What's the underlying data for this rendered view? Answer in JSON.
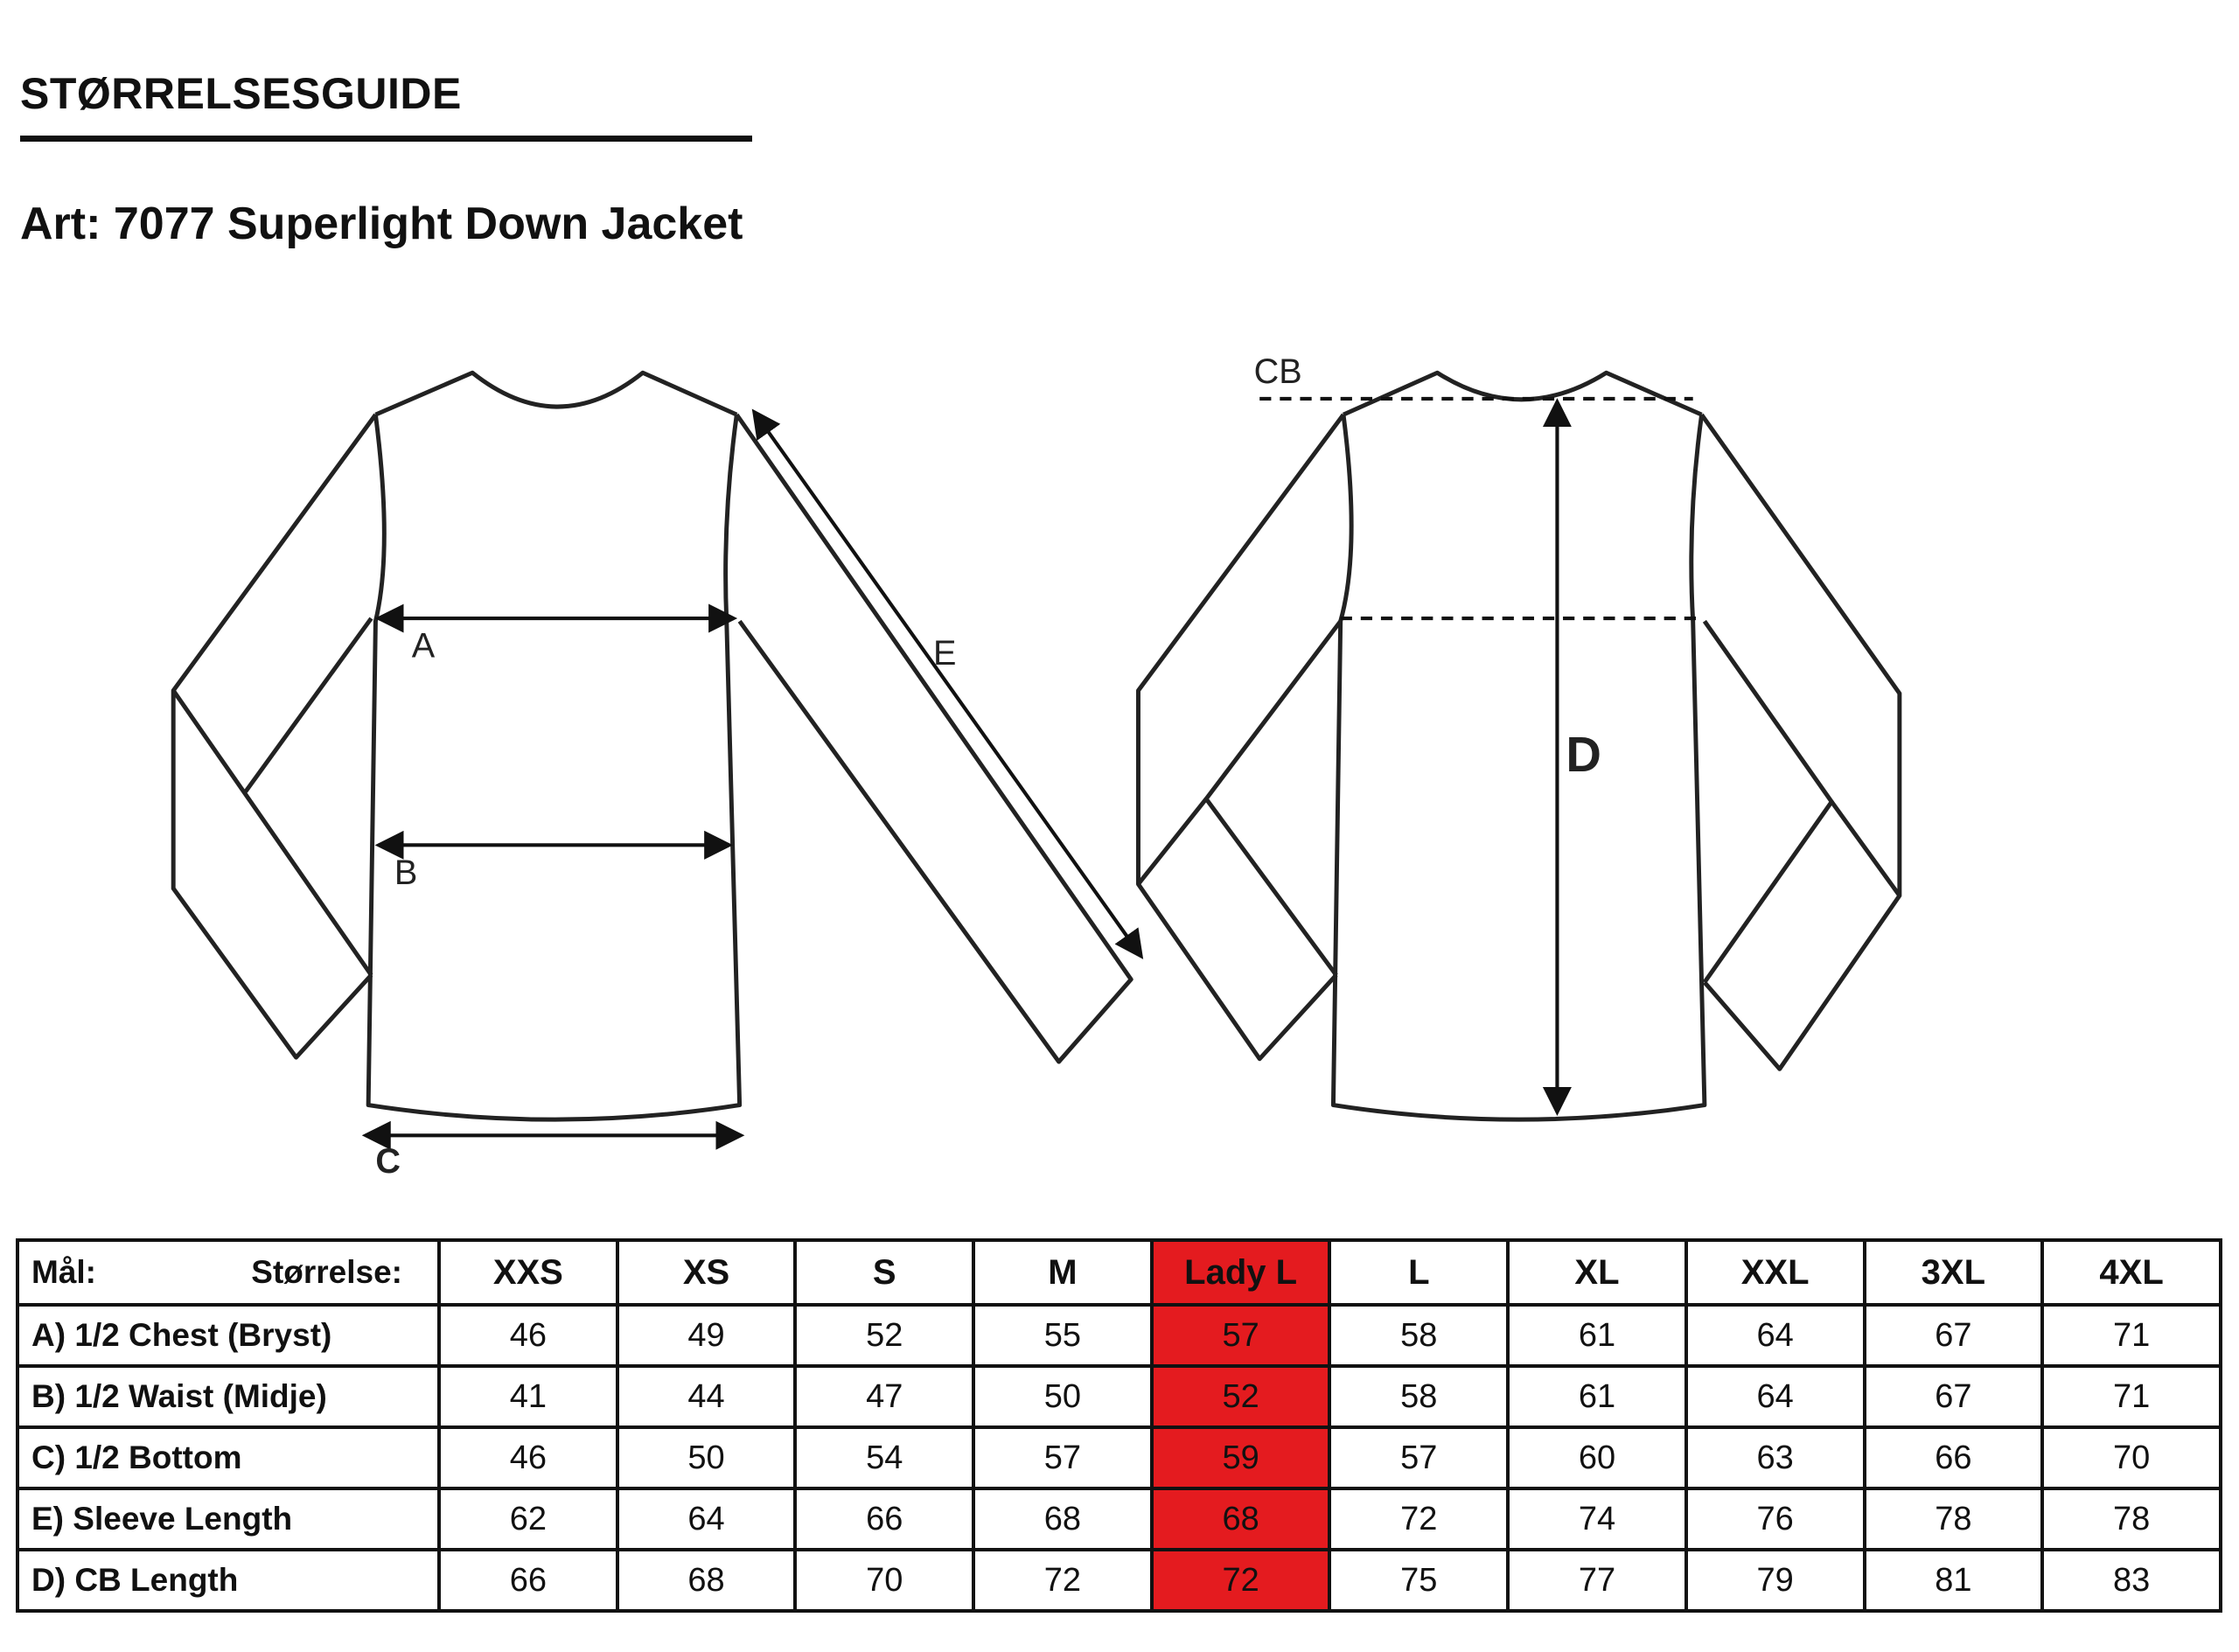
{
  "header": {
    "title": "STØRRELSESGUIDE",
    "article": "Art: 7077 Superlight Down Jacket"
  },
  "diagram": {
    "labels": {
      "a": "A",
      "b": "B",
      "c": "C",
      "e": "E",
      "cb": "CB",
      "d": "D"
    }
  },
  "table": {
    "corner_left": "Mål:",
    "corner_right": "Størrelse:",
    "highlight_color": "#e41b1f",
    "highlighted_size": "Lady L",
    "sizes": [
      "XXS",
      "XS",
      "S",
      "M",
      "Lady L",
      "L",
      "XL",
      "XXL",
      "3XL",
      "4XL"
    ],
    "rows": [
      {
        "label": "A) 1/2 Chest (Bryst)",
        "values": [
          "46",
          "49",
          "52",
          "55",
          "57",
          "58",
          "61",
          "64",
          "67",
          "71"
        ]
      },
      {
        "label": "B) 1/2 Waist (Midje)",
        "values": [
          "41",
          "44",
          "47",
          "50",
          "52",
          "58",
          "61",
          "64",
          "67",
          "71"
        ]
      },
      {
        "label": "C) 1/2 Bottom",
        "values": [
          "46",
          "50",
          "54",
          "57",
          "59",
          "57",
          "60",
          "63",
          "66",
          "70"
        ]
      },
      {
        "label": "E) Sleeve Length",
        "values": [
          "62",
          "64",
          "66",
          "68",
          "68",
          "72",
          "74",
          "76",
          "78",
          "78"
        ]
      },
      {
        "label": "D) CB Length",
        "values": [
          "66",
          "68",
          "70",
          "72",
          "72",
          "75",
          "77",
          "79",
          "81",
          "83"
        ]
      }
    ]
  }
}
